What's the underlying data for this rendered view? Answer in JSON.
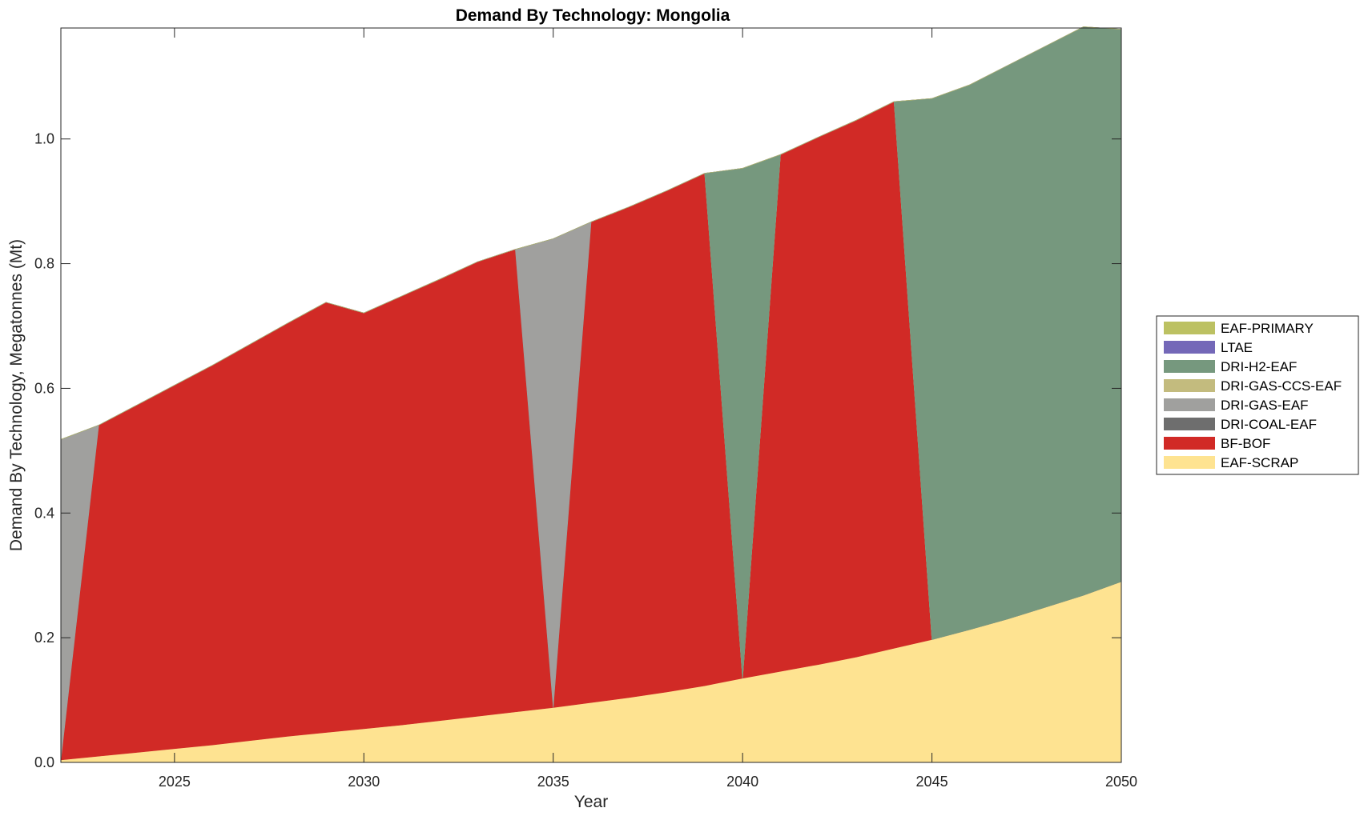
{
  "chart_data": {
    "type": "area",
    "stacked": true,
    "title": "Demand By Technology: Mongolia",
    "xlabel": "Year",
    "ylabel": "Demand By Technology, Megatonnes (Mt)",
    "xlim": [
      2022,
      2050
    ],
    "ylim": [
      0,
      1.178
    ],
    "xticks": [
      2025,
      2030,
      2035,
      2040,
      2045,
      2050
    ],
    "yticks": [
      0.0,
      0.2,
      0.4,
      0.6,
      0.8,
      1.0
    ],
    "ytick_labels": [
      "0.0",
      "0.2",
      "0.4",
      "0.6",
      "0.8",
      "1.0"
    ],
    "grid": false,
    "legend_position": "right",
    "x": [
      2022,
      2023,
      2024,
      2025,
      2026,
      2027,
      2028,
      2029,
      2030,
      2031,
      2032,
      2033,
      2034,
      2035,
      2036,
      2037,
      2038,
      2039,
      2040,
      2041,
      2042,
      2043,
      2044,
      2045,
      2046,
      2047,
      2048,
      2049,
      2050
    ],
    "series": [
      {
        "name": "EAF-SCRAP",
        "color": "#FEE391",
        "values": [
          0.004,
          0.01,
          0.016,
          0.022,
          0.028,
          0.035,
          0.042,
          0.048,
          0.054,
          0.06,
          0.067,
          0.074,
          0.081,
          0.088,
          0.096,
          0.104,
          0.113,
          0.123,
          0.135,
          0.146,
          0.157,
          0.169,
          0.183,
          0.197,
          0.213,
          0.23,
          0.249,
          0.268,
          0.29
        ]
      },
      {
        "name": "BF-BOF",
        "color": "#D12A26",
        "values": [
          0,
          0.531,
          0.557,
          0.583,
          0.609,
          0.636,
          0.663,
          0.69,
          0.667,
          0.688,
          0.708,
          0.729,
          0.742,
          0,
          0.771,
          0.787,
          0.804,
          0.822,
          0,
          0.829,
          0.846,
          0.861,
          0.877,
          0,
          0,
          0,
          0,
          0,
          0
        ]
      },
      {
        "name": "DRI-COAL-EAF",
        "color": "#6E6E6E",
        "values": [
          0,
          0,
          0,
          0,
          0,
          0,
          0,
          0,
          0,
          0,
          0,
          0,
          0,
          0,
          0,
          0,
          0,
          0,
          0,
          0,
          0,
          0,
          0,
          0,
          0,
          0,
          0,
          0,
          0
        ]
      },
      {
        "name": "DRI-GAS-EAF",
        "color": "#A0A09E",
        "values": [
          0.514,
          0,
          0,
          0,
          0,
          0,
          0,
          0,
          0,
          0,
          0,
          0,
          0,
          0.752,
          0,
          0,
          0,
          0,
          0,
          0,
          0,
          0,
          0,
          0,
          0,
          0,
          0,
          0,
          0
        ]
      },
      {
        "name": "DRI-GAS-CCS-EAF",
        "color": "#C3BB7E",
        "values": [
          0,
          0,
          0,
          0,
          0,
          0,
          0,
          0,
          0,
          0,
          0,
          0,
          0,
          0,
          0,
          0,
          0,
          0,
          0,
          0,
          0,
          0,
          0,
          0,
          0,
          0,
          0,
          0,
          0
        ]
      },
      {
        "name": "DRI-H2-EAF",
        "color": "#76987E",
        "values": [
          0,
          0,
          0,
          0,
          0,
          0,
          0,
          0,
          0,
          0,
          0,
          0,
          0,
          0,
          0,
          0,
          0,
          0,
          0.818,
          0,
          0,
          0,
          0,
          0.868,
          0.874,
          0.888,
          0.9,
          0.912,
          0.886
        ]
      },
      {
        "name": "LTAE",
        "color": "#7468B8",
        "values": [
          0,
          0,
          0,
          0,
          0,
          0,
          0,
          0,
          0,
          0,
          0,
          0,
          0,
          0,
          0,
          0,
          0,
          0,
          0,
          0,
          0,
          0,
          0,
          0,
          0,
          0,
          0,
          0,
          0
        ]
      },
      {
        "name": "EAF-PRIMARY",
        "color": "#BCC162",
        "values": [
          0,
          0,
          0,
          0,
          0,
          0,
          0,
          0,
          0,
          0,
          0,
          0,
          0,
          0,
          0,
          0,
          0,
          0,
          0,
          0,
          0,
          0,
          0,
          0,
          0,
          0,
          0,
          0,
          0
        ]
      }
    ],
    "legend": [
      "EAF-PRIMARY",
      "LTAE",
      "DRI-H2-EAF",
      "DRI-GAS-CCS-EAF",
      "DRI-GAS-EAF",
      "DRI-COAL-EAF",
      "BF-BOF",
      "EAF-SCRAP"
    ]
  }
}
